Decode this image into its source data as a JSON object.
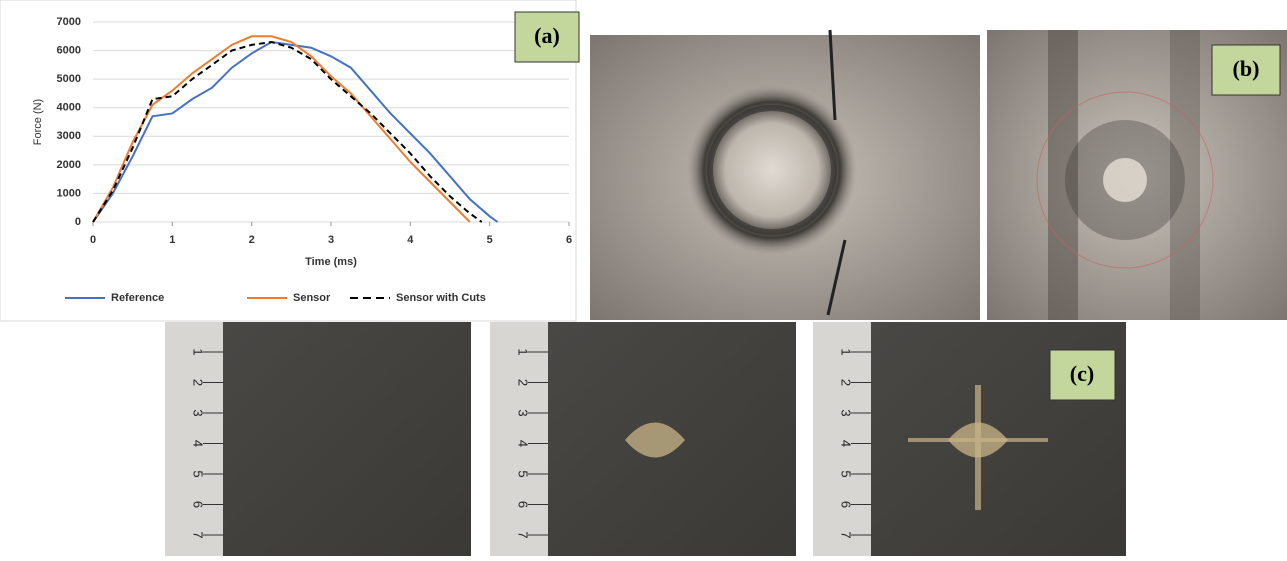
{
  "chart_data": {
    "type": "line",
    "x_label": "Time (ms)",
    "y_label": "Force (N)",
    "xlim": [
      0,
      6
    ],
    "xticks": [
      0,
      1,
      2,
      3,
      4,
      5,
      6
    ],
    "ylim": [
      0,
      7000
    ],
    "yticks": [
      0,
      1000,
      2000,
      3000,
      4000,
      5000,
      6000,
      7000
    ],
    "grid": true,
    "legend": "bottom",
    "series": [
      {
        "name": "Reference",
        "color": "#4472c4",
        "dash": false,
        "x": [
          0,
          0.25,
          0.5,
          0.75,
          1,
          1.25,
          1.5,
          1.75,
          2,
          2.25,
          2.5,
          2.75,
          3,
          3.25,
          3.5,
          3.75,
          4,
          4.25,
          4.5,
          4.75,
          5,
          5.1
        ],
        "values": [
          0,
          1000,
          2300,
          3700,
          3800,
          4300,
          4700,
          5400,
          5900,
          6300,
          6200,
          6100,
          5800,
          5400,
          4600,
          3800,
          3100,
          2400,
          1600,
          800,
          200,
          0
        ]
      },
      {
        "name": "Sensor",
        "color": "#ed7d31",
        "dash": false,
        "x": [
          0,
          0.25,
          0.5,
          0.75,
          1,
          1.25,
          1.5,
          1.75,
          2,
          2.25,
          2.5,
          2.75,
          3,
          3.25,
          3.5,
          3.75,
          4,
          4.25,
          4.5,
          4.75
        ],
        "values": [
          0,
          1200,
          2800,
          4100,
          4600,
          5200,
          5700,
          6200,
          6500,
          6500,
          6300,
          5800,
          5100,
          4500,
          3700,
          2900,
          2100,
          1400,
          700,
          0
        ]
      },
      {
        "name": "Sensor with Cuts",
        "color": "#000000",
        "dash": true,
        "x": [
          0,
          0.25,
          0.5,
          0.75,
          1,
          1.25,
          1.5,
          1.75,
          2,
          2.25,
          2.5,
          2.75,
          3,
          3.25,
          3.5,
          3.75,
          4,
          4.25,
          4.5,
          4.75,
          4.9
        ],
        "values": [
          0,
          1100,
          2600,
          4300,
          4400,
          5000,
          5500,
          6000,
          6200,
          6300,
          6100,
          5700,
          5000,
          4400,
          3800,
          3100,
          2400,
          1600,
          900,
          300,
          0
        ]
      }
    ]
  },
  "panels": {
    "a": "(a)",
    "b": "(b)",
    "c": "(c)"
  },
  "ruler_labels": [
    "1",
    "2",
    "3",
    "4",
    "5",
    "6",
    "7"
  ]
}
